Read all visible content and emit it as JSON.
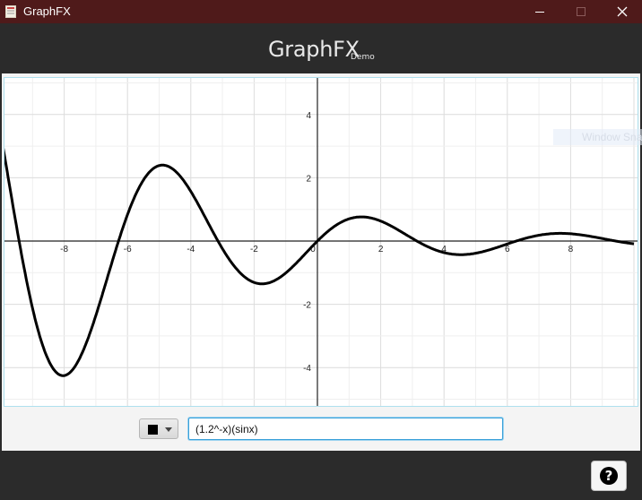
{
  "window": {
    "title": "GraphFX",
    "minimize_icon": "minimize-icon",
    "maximize_icon": "maximize-icon",
    "close_icon": "close-icon"
  },
  "header": {
    "title": "GraphFX",
    "subtitle": "Demo"
  },
  "overlay": {
    "text": "Window Sna"
  },
  "input": {
    "color": "#000000",
    "value": "(1.2^-x)(sinx)"
  },
  "help": {
    "label": "?"
  },
  "colors": {
    "titlebar": "#4f1a1a",
    "background": "#2b2b2b",
    "input_focus": "#39a0d9"
  },
  "chart_data": {
    "type": "line",
    "expression": "(1.2^-x)(sinx)",
    "xlim": [
      -10,
      10
    ],
    "ylim": [
      -5.2,
      5.2
    ],
    "grid": true,
    "x_ticks": [
      -8,
      -6,
      -4,
      -2,
      0,
      2,
      4,
      6,
      8
    ],
    "y_ticks": [
      -4,
      -2,
      2,
      4
    ],
    "x_tick_labels": [
      "-8",
      "-6",
      "-4",
      "-2",
      "0",
      "2",
      "4",
      "6",
      "8"
    ],
    "y_tick_labels": [
      "-4",
      "-2",
      "2",
      "4"
    ],
    "series": [
      {
        "color": "#000000",
        "x": [
          -10,
          -9.5,
          -9,
          -8.5,
          -8,
          -7.5,
          -7,
          -6.5,
          -6,
          -5.5,
          -5,
          -4.5,
          -4,
          -3.5,
          -3,
          -2.5,
          -2,
          -1.5,
          -1,
          -0.5,
          0,
          0.5,
          1,
          1.5,
          2,
          2.5,
          3,
          3.5,
          4,
          4.5,
          5,
          5.5,
          6,
          6.5,
          7,
          7.5,
          8,
          8.5,
          9,
          9.5,
          10
        ],
        "y": [
          3.37,
          0.47,
          -2.13,
          -3.79,
          -4.23,
          -3.44,
          -1.77,
          0.25,
          2.09,
          2.84,
          2.39,
          2.22,
          0.57,
          0.73,
          -0.22,
          -0.94,
          -1.31,
          -1.24,
          -0.99,
          -0.47,
          0,
          0.43,
          0.7,
          0.76,
          0.63,
          0.38,
          0.08,
          -0.18,
          -0.36,
          -0.43,
          -0.38,
          -0.26,
          -0.09,
          0.06,
          0.18,
          0.24,
          0.23,
          0.17,
          0.08,
          -0.02,
          -0.09
        ]
      }
    ]
  }
}
